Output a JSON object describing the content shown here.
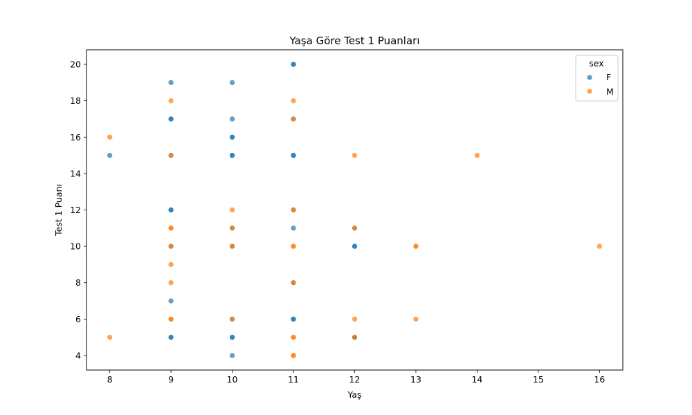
{
  "chart_data": {
    "type": "scatter",
    "title": "Yaşa Göre Test 1 Puanları",
    "xlabel": "Yaş",
    "ylabel": "Test 1 Puanı",
    "xlim": [
      7.62,
      16.38
    ],
    "ylim": [
      3.2,
      20.8
    ],
    "xticks": [
      8,
      9,
      10,
      11,
      12,
      13,
      14,
      15,
      16
    ],
    "yticks": [
      4,
      6,
      8,
      10,
      12,
      14,
      16,
      18,
      20
    ],
    "grid": false,
    "legend": {
      "title": "sex",
      "placement": "top-right"
    },
    "series": [
      {
        "name": "F",
        "color": "#1f77b4",
        "points": [
          [
            8,
            15
          ],
          [
            9,
            19
          ],
          [
            9,
            17
          ],
          [
            9,
            17
          ],
          [
            9,
            15
          ],
          [
            9,
            12
          ],
          [
            9,
            12
          ],
          [
            9,
            10
          ],
          [
            9,
            7
          ],
          [
            9,
            5
          ],
          [
            9,
            5
          ],
          [
            10,
            19
          ],
          [
            10,
            17
          ],
          [
            10,
            16
          ],
          [
            10,
            16
          ],
          [
            10,
            15
          ],
          [
            10,
            15
          ],
          [
            10,
            11
          ],
          [
            10,
            10
          ],
          [
            10,
            6
          ],
          [
            10,
            5
          ],
          [
            10,
            5
          ],
          [
            10,
            4
          ],
          [
            11,
            20
          ],
          [
            11,
            20
          ],
          [
            11,
            17
          ],
          [
            11,
            15
          ],
          [
            11,
            15
          ],
          [
            11,
            12
          ],
          [
            11,
            11
          ],
          [
            11,
            8
          ],
          [
            11,
            6
          ],
          [
            11,
            6
          ],
          [
            12,
            11
          ],
          [
            12,
            10
          ],
          [
            12,
            10
          ],
          [
            12,
            5
          ],
          [
            12,
            5
          ]
        ]
      },
      {
        "name": "M",
        "color": "#ff7f0e",
        "points": [
          [
            8,
            16
          ],
          [
            8,
            5
          ],
          [
            9,
            18
          ],
          [
            9,
            15
          ],
          [
            9,
            11
          ],
          [
            9,
            11
          ],
          [
            9,
            10
          ],
          [
            9,
            9
          ],
          [
            9,
            8
          ],
          [
            9,
            6
          ],
          [
            9,
            6
          ],
          [
            10,
            12
          ],
          [
            10,
            11
          ],
          [
            10,
            10
          ],
          [
            10,
            6
          ],
          [
            11,
            18
          ],
          [
            11,
            17
          ],
          [
            11,
            12
          ],
          [
            11,
            10
          ],
          [
            11,
            10
          ],
          [
            11,
            8
          ],
          [
            11,
            5
          ],
          [
            11,
            5
          ],
          [
            11,
            4
          ],
          [
            11,
            4
          ],
          [
            12,
            15
          ],
          [
            12,
            11
          ],
          [
            12,
            6
          ],
          [
            12,
            5
          ],
          [
            13,
            10
          ],
          [
            13,
            10
          ],
          [
            13,
            6
          ],
          [
            14,
            15
          ],
          [
            16,
            10
          ]
        ]
      }
    ]
  }
}
